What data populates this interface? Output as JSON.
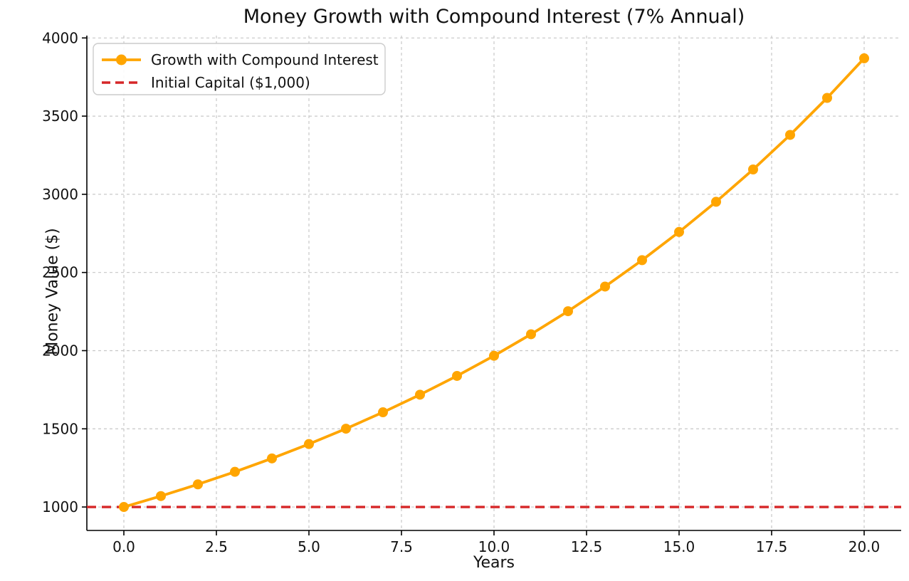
{
  "chart_data": {
    "type": "line",
    "title": "Money Growth with Compound Interest (7% Annual)",
    "xlabel": "Years",
    "ylabel": "Money Value ($)",
    "xlim": [
      -1,
      21
    ],
    "ylim": [
      850,
      4015
    ],
    "x_ticks": [
      0,
      2.5,
      5,
      7.5,
      10,
      12.5,
      15,
      17.5,
      20
    ],
    "x_tick_labels": [
      "0.0",
      "2.5",
      "5.0",
      "7.5",
      "10.0",
      "12.5",
      "15.0",
      "17.5",
      "20.0"
    ],
    "y_ticks": [
      1000,
      1500,
      2000,
      2500,
      3000,
      3500,
      4000
    ],
    "y_tick_labels": [
      "1000",
      "1500",
      "2000",
      "2500",
      "3000",
      "3500",
      "4000"
    ],
    "grid": true,
    "grid_style": "dashed",
    "legend_position": "upper-left",
    "colors": {
      "growth_line": "#FFA500",
      "initial_capital_line": "#D62728",
      "grid": "#C8C8C8",
      "axis": "#000000",
      "legend_border": "#CCCCCC",
      "background": "#FFFFFF"
    },
    "series": [
      {
        "name": "Growth with Compound Interest",
        "type": "line-markers",
        "color": "#FFA500",
        "x": [
          0,
          1,
          2,
          3,
          4,
          5,
          6,
          7,
          8,
          9,
          10,
          11,
          12,
          13,
          14,
          15,
          16,
          17,
          18,
          19,
          20
        ],
        "y": [
          1000.0,
          1070.0,
          1144.9,
          1225.04,
          1310.8,
          1402.55,
          1500.73,
          1605.78,
          1718.19,
          1838.46,
          1967.15,
          2104.85,
          2252.19,
          2409.85,
          2578.53,
          2759.03,
          2952.16,
          3158.82,
          3379.93,
          3616.53,
          3869.68
        ]
      },
      {
        "name": "Initial Capital ($1,000)",
        "type": "hline-dashed",
        "color": "#D62728",
        "y_value": 1000
      }
    ]
  }
}
